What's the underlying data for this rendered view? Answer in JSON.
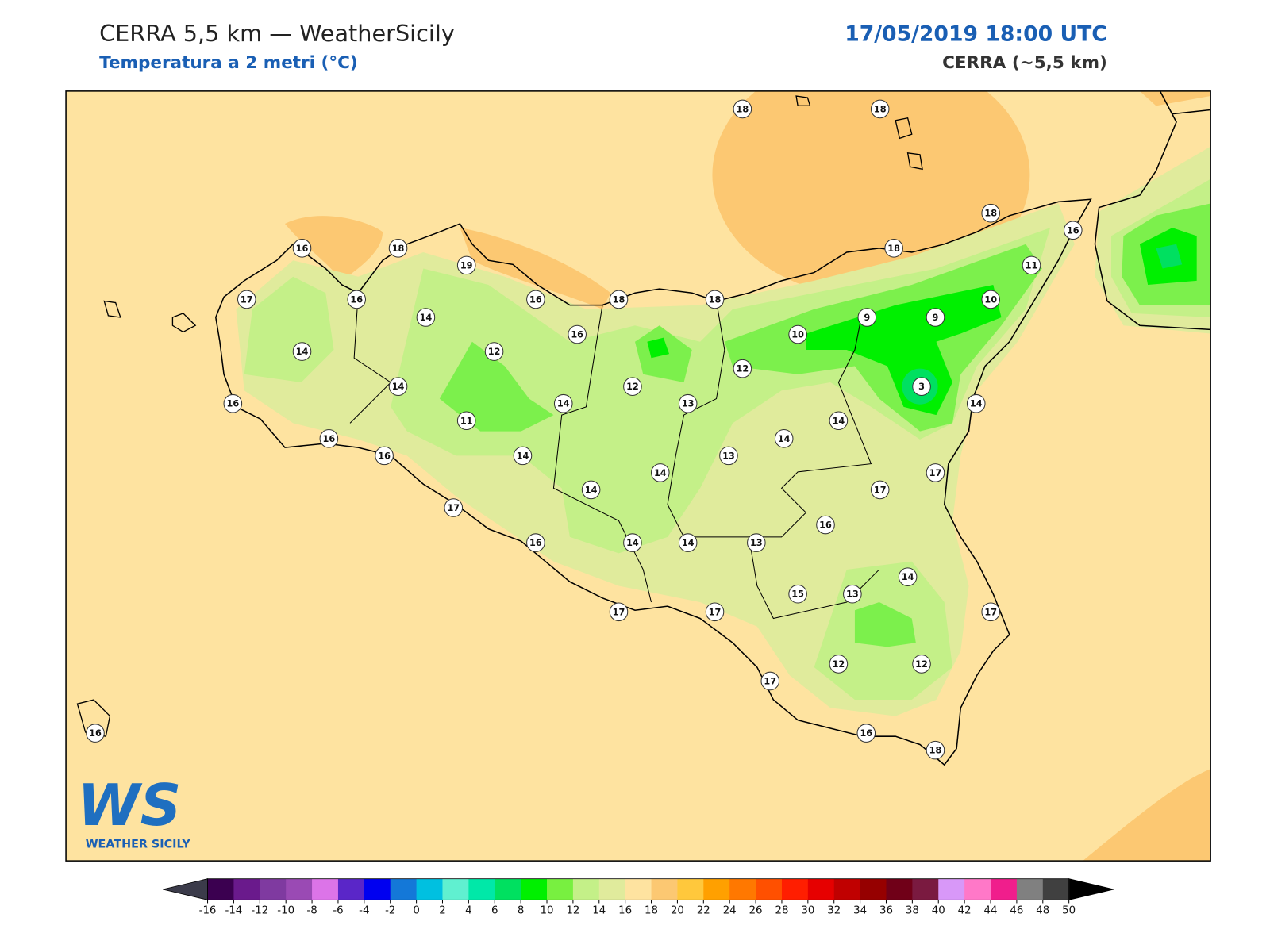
{
  "header": {
    "title": "CERRA 5,5 km — WeatherSicily",
    "subtitle": "Temperatura a 2 metri (°C)",
    "datetime": "17/05/2019 18:00 UTC",
    "model": "CERRA (~5,5 km)"
  },
  "stations": [
    18,
    18,
    18,
    16,
    16,
    18,
    19,
    18,
    11,
    17,
    16,
    16,
    18,
    18,
    10,
    14,
    9,
    9,
    16,
    10,
    14,
    12,
    12,
    14,
    12,
    3,
    16,
    14,
    13,
    14,
    11,
    14,
    16,
    14,
    16,
    14,
    13,
    14,
    17,
    17,
    14,
    17,
    16,
    16,
    14,
    14,
    13,
    14,
    15,
    13,
    17,
    17,
    17,
    12,
    12,
    17,
    16,
    16,
    18
  ],
  "colorbar": {
    "ticks": [
      -16,
      -14,
      -12,
      -10,
      -8,
      -6,
      -4,
      -2,
      0,
      2,
      4,
      6,
      8,
      10,
      12,
      14,
      16,
      18,
      20,
      22,
      24,
      26,
      28,
      30,
      32,
      34,
      36,
      38,
      40,
      42,
      44,
      46,
      48,
      50
    ],
    "colors": [
      "#3b0050",
      "#6a1a8c",
      "#7f3aa0",
      "#9a4ab4",
      "#dc74e8",
      "#5a26c8",
      "#0000f0",
      "#1478d8",
      "#00c0e0",
      "#60f0d0",
      "#00e8a8",
      "#00e060",
      "#00f000",
      "#78f040",
      "#c4f088",
      "#e0eb9c",
      "#fee3a0",
      "#fcc872",
      "#ffc83c",
      "#ffa000",
      "#ff7800",
      "#ff5000",
      "#ff1e00",
      "#e60000",
      "#c00000",
      "#960000",
      "#700018",
      "#7a1a40",
      "#d898f8",
      "#ff78c8",
      "#f01e8c",
      "#808080",
      "#404040"
    ],
    "extend_colors": [
      "#3b3b4a",
      "#000000"
    ]
  },
  "logo": {
    "mark": "WS",
    "text": "WEATHER SICILY"
  }
}
